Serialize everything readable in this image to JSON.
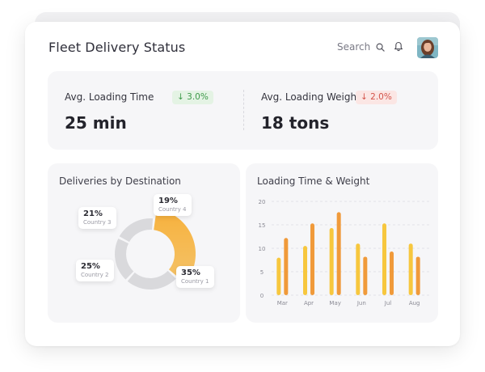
{
  "header": {
    "title": "Fleet Delivery Status",
    "search_label": "Search"
  },
  "stats": [
    {
      "label": "Avg. Loading Time",
      "change": "↓ 3.0%",
      "value": "25 min",
      "trend": "down-good",
      "color": "#3e9a4a"
    },
    {
      "label": "Avg. Loading Weight",
      "change": "↓ 2.0%",
      "value": "18 tons",
      "trend": "down-bad",
      "color": "#d3534a"
    }
  ],
  "donut": {
    "title": "Deliveries by Destination",
    "segments": [
      {
        "percent": "35%",
        "country": "Country 1",
        "value": 35,
        "color": "#f3b441"
      },
      {
        "percent": "25%",
        "country": "Country 2",
        "value": 25,
        "color": "#d9d9dc"
      },
      {
        "percent": "21%",
        "country": "Country 3",
        "value": 21,
        "color": "#d9d9dc"
      },
      {
        "percent": "19%",
        "country": "Country 4",
        "value": 19,
        "color": "#d9d9dc"
      }
    ]
  },
  "chart_data": {
    "type": "bar",
    "title": "Loading Time & Weight",
    "categories": [
      "Mar",
      "Apr",
      "May",
      "Jun",
      "Jul",
      "Aug"
    ],
    "series": [
      {
        "values": [
          8,
          10.5,
          14.3,
          11,
          15.3,
          11
        ],
        "color": "#f7c73e"
      },
      {
        "values": [
          12.2,
          15.3,
          17.7,
          8.2,
          9.3,
          8.2
        ],
        "color": "#f09a3a"
      }
    ],
    "yticks": [
      "0",
      "5",
      "10",
      "15",
      "20"
    ],
    "ylim": [
      0,
      20
    ],
    "grid": true
  }
}
